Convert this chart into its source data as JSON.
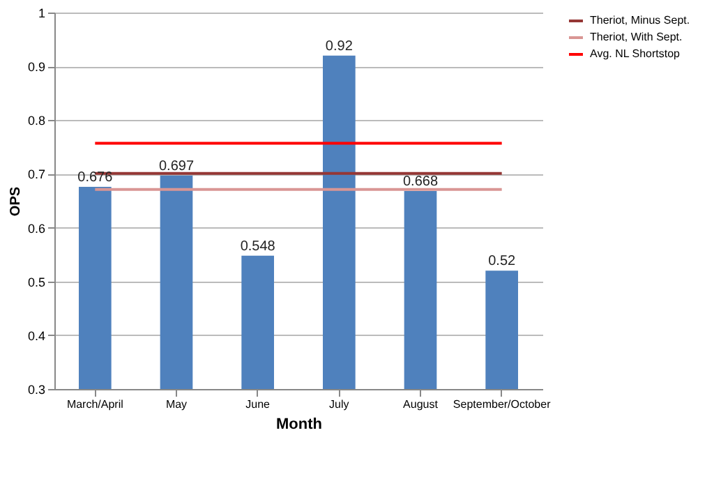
{
  "chart_data": {
    "type": "bar",
    "xlabel": "Month",
    "ylabel": "OPS",
    "categories": [
      "March/April",
      "May",
      "June",
      "July",
      "August",
      "September/October"
    ],
    "series": [
      {
        "color": "#4f81bd",
        "values": [
          0.676,
          0.697,
          0.548,
          0.92,
          0.668,
          0.52
        ],
        "value_labels": [
          "0.676",
          "0.697",
          "0.548",
          "0.92",
          "0.668",
          "0.52"
        ]
      },
      {
        "type": "line",
        "name": "Theriot, Minus Sept.",
        "color": "#953735",
        "values": [
          0.701,
          0.701,
          0.701,
          0.701,
          0.701,
          0.701
        ]
      },
      {
        "type": "line",
        "name": "Theriot, With Sept.",
        "color": "#d99694",
        "values": [
          0.671,
          0.671,
          0.671,
          0.671,
          0.671,
          0.671
        ]
      },
      {
        "type": "line",
        "name": "Avg. NL Shortstop",
        "color": "#ff0000",
        "values": [
          0.757,
          0.757,
          0.757,
          0.757,
          0.757,
          0.757
        ]
      }
    ],
    "ylim": [
      0.3,
      1
    ],
    "yticks": [
      0.3,
      0.4,
      0.5,
      0.6,
      0.7,
      0.8,
      0.9,
      1
    ],
    "grid": "y",
    "legend": "right"
  }
}
